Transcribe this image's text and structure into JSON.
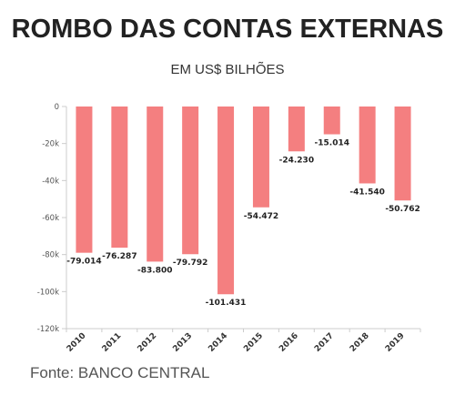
{
  "chart_data": {
    "type": "bar",
    "title": "ROMBO DAS CONTAS EXTERNAS",
    "subtitle": "EM US$ BILHÕES",
    "source": "Fonte: BANCO CENTRAL",
    "categories": [
      "2010",
      "2011",
      "2012",
      "2013",
      "2014",
      "2015",
      "2016",
      "2017",
      "2018",
      "2019"
    ],
    "values": [
      -79014,
      -76287,
      -83800,
      -79792,
      -101431,
      -54472,
      -24230,
      -15014,
      -41540,
      -50762
    ],
    "data_labels": [
      "-79.014",
      "-76.287",
      "-83.800",
      "-79.792",
      "-101.431",
      "-54.472",
      "-24.230",
      "-15.014",
      "-41.540",
      "-50.762"
    ],
    "y_ticks": [
      0,
      -20000,
      -40000,
      -60000,
      -80000,
      -100000,
      -120000
    ],
    "y_tick_labels": [
      "0",
      "-20k",
      "-40k",
      "-60k",
      "-80k",
      "-100k",
      "-120k"
    ],
    "ylim": [
      -120000,
      0
    ],
    "grid": false,
    "colors": {
      "bar": "#f47f80",
      "axis": "#cccccc"
    }
  }
}
